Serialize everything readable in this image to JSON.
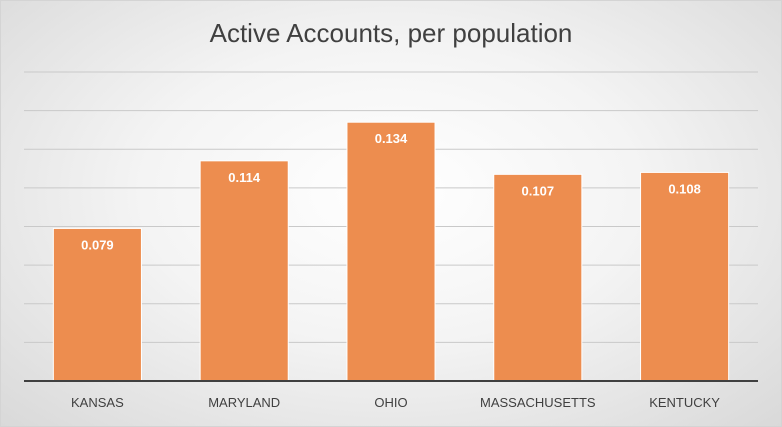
{
  "chart_data": {
    "type": "bar",
    "title": "Active Accounts, per population",
    "categories": [
      "KANSAS",
      "MARYLAND",
      "OHIO",
      "MASSACHUSETTS",
      "KENTUCKY"
    ],
    "values": [
      0.079,
      0.114,
      0.134,
      0.107,
      0.108
    ],
    "data_labels": [
      "0.079",
      "0.114",
      "0.134",
      "0.107",
      "0.108"
    ],
    "xlabel": "",
    "ylabel": "",
    "ylim": [
      0,
      0.16
    ],
    "ytick_step": 0.02,
    "grid": true,
    "legend": "none",
    "bar_color": "#ed8d4f",
    "bar_border_color": "#ffffff",
    "grid_color": "#c9c9c9",
    "axis_color": "#404040"
  }
}
